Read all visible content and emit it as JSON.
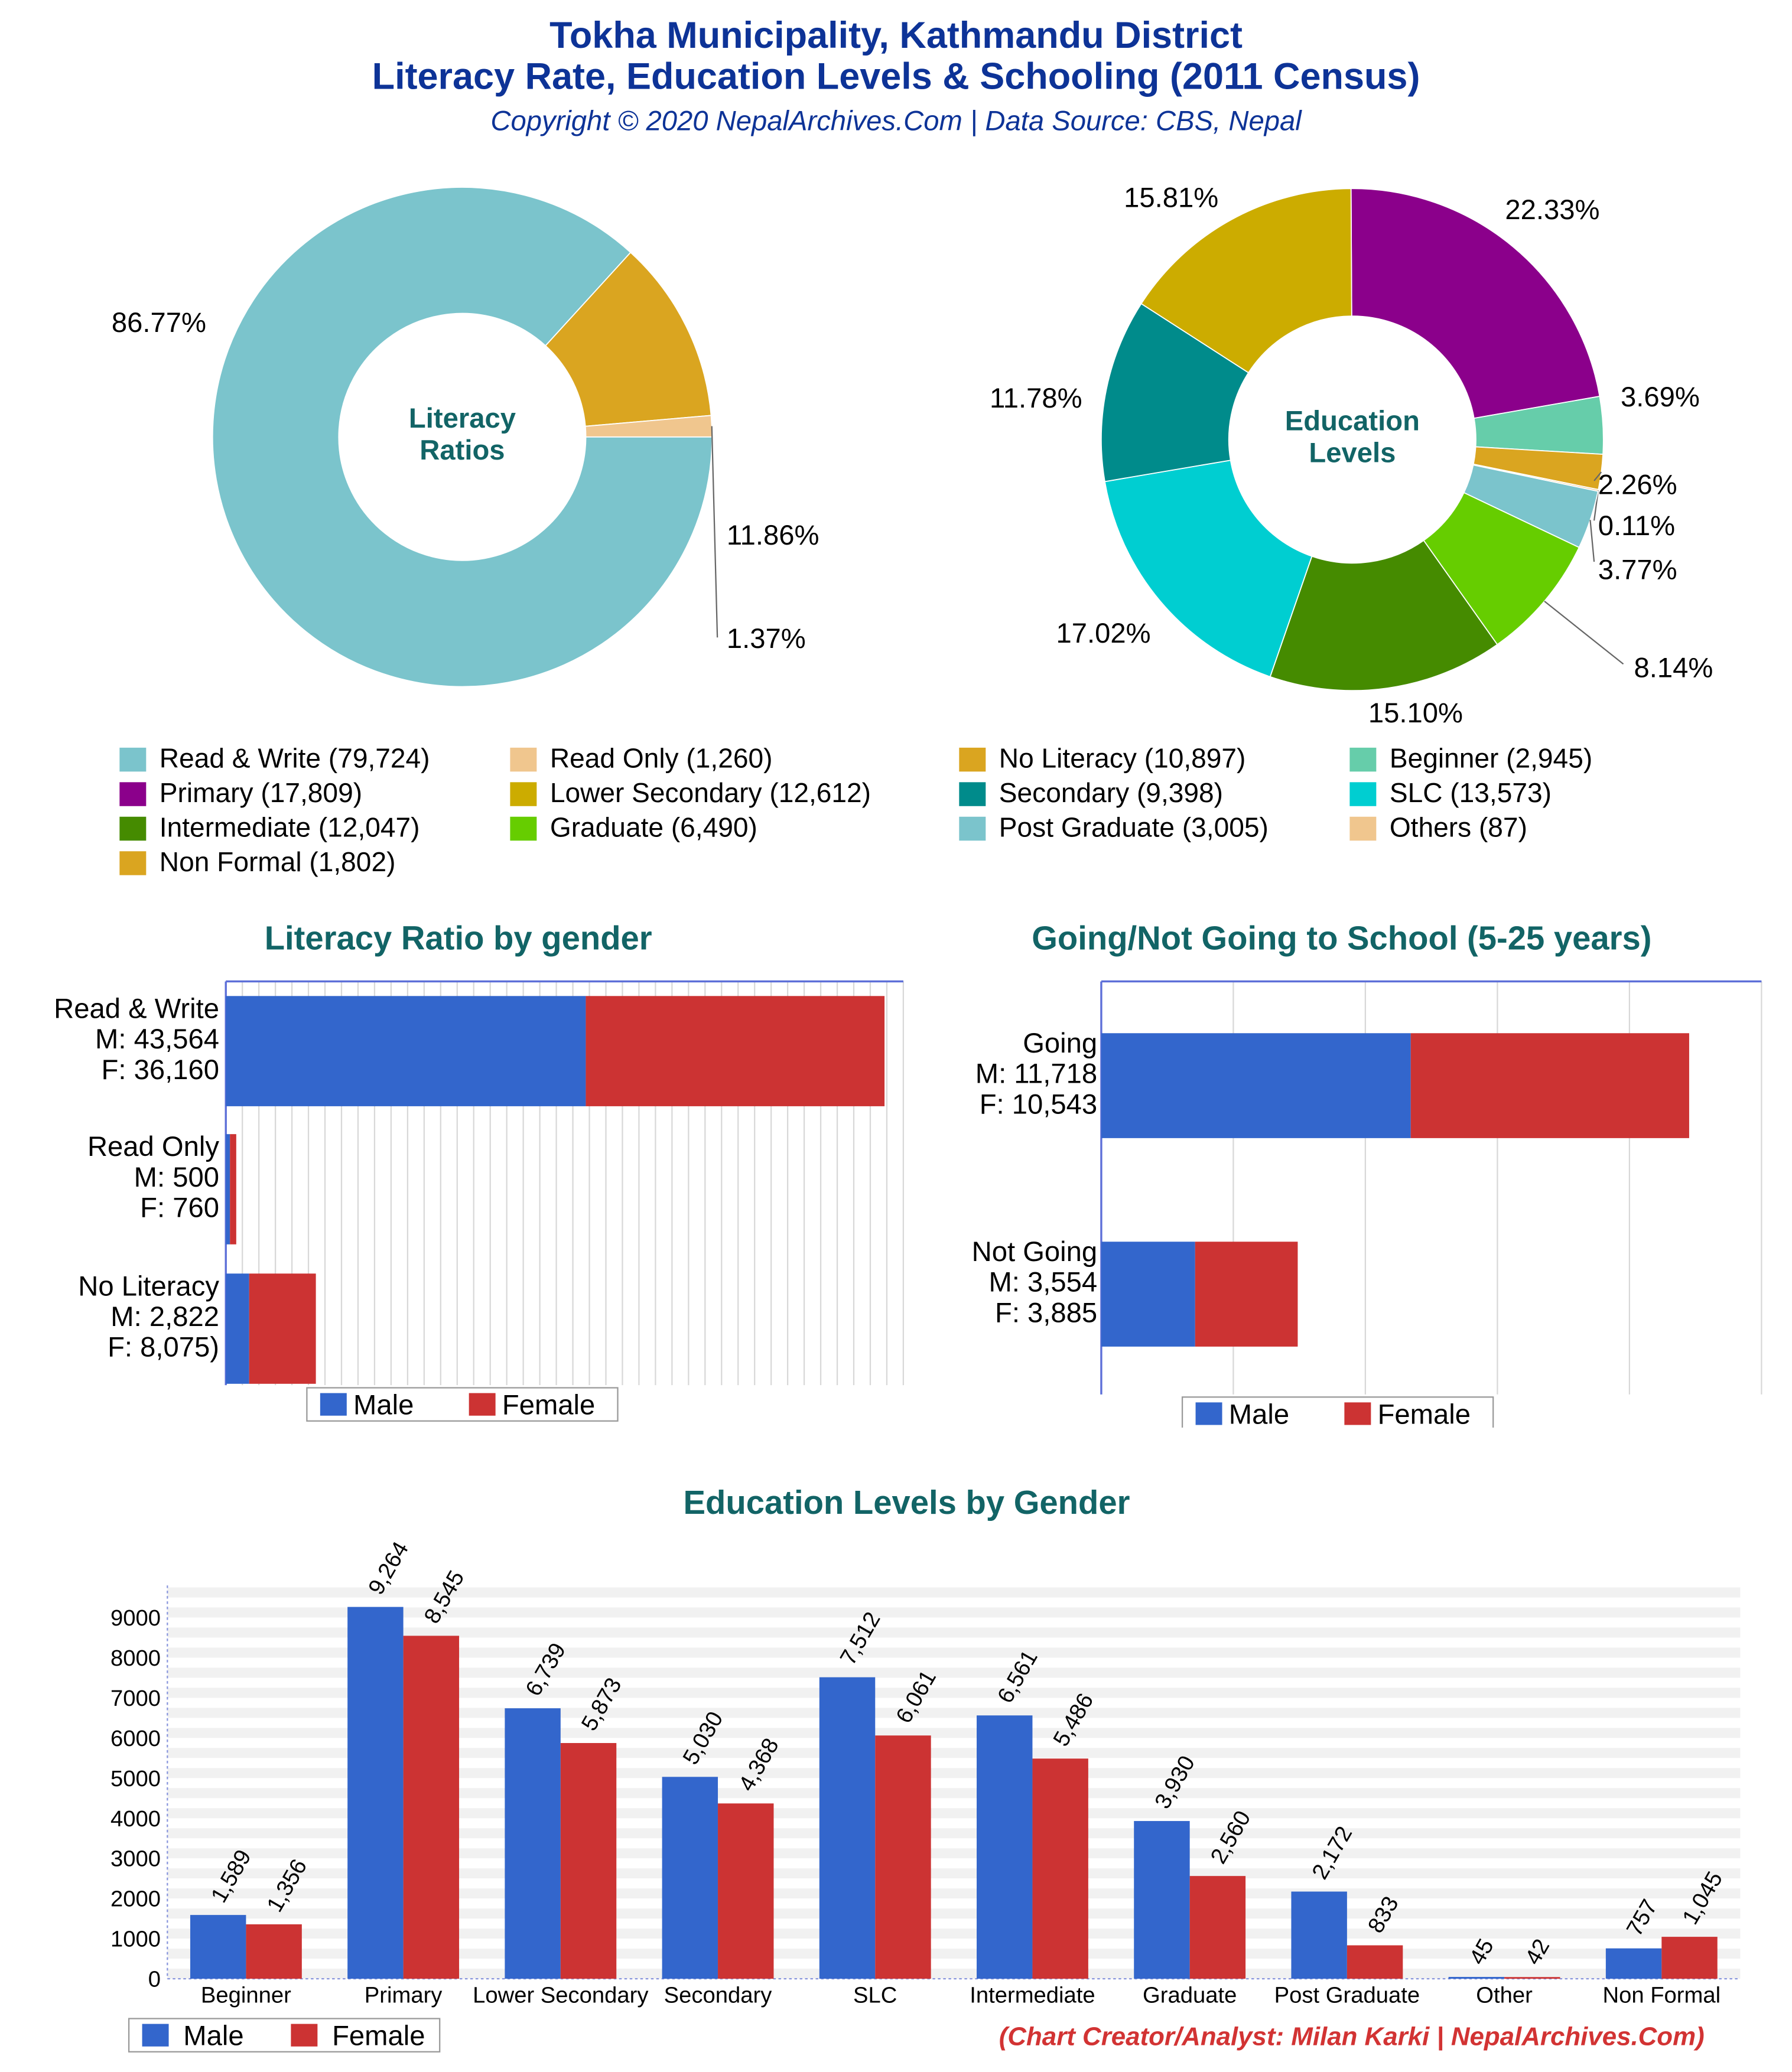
{
  "header": {
    "title_line1": "Tokha Municipality, Kathmandu District",
    "title_line2": "Literacy Rate, Education Levels & Schooling (2011 Census)",
    "subtitle": "Copyright © 2020 NepalArchives.Com | Data Source: CBS, Nepal"
  },
  "footer": {
    "credit": "(Chart Creator/Analyst: Milan Karki | NepalArchives.Com)"
  },
  "legend_items": [
    {
      "label": "Read & Write (79,724)",
      "color": "#7bc4cc"
    },
    {
      "label": "Read Only (1,260)",
      "color": "#f0c68e"
    },
    {
      "label": "No Literacy (10,897)",
      "color": "#daa520"
    },
    {
      "label": "Beginner (2,945)",
      "color": "#66cdaa"
    },
    {
      "label": "Primary (17,809)",
      "color": "#8b008b"
    },
    {
      "label": "Lower Secondary (12,612)",
      "color": "#ccac00"
    },
    {
      "label": "Secondary (9,398)",
      "color": "#008b8b"
    },
    {
      "label": "SLC (13,573)",
      "color": "#00ced1"
    },
    {
      "label": "Intermediate (12,047)",
      "color": "#458b00"
    },
    {
      "label": "Graduate (6,490)",
      "color": "#66cd00"
    },
    {
      "label": "Post Graduate (3,005)",
      "color": "#7bc4cc"
    },
    {
      "label": "Others (87)",
      "color": "#f0c68e"
    },
    {
      "label": "Non Formal (1,802)",
      "color": "#daa520"
    }
  ],
  "chart_data": [
    {
      "type": "pie",
      "center_label": [
        "Literacy",
        "Ratios"
      ],
      "slices": [
        {
          "name": "Read & Write",
          "value": 79724,
          "pct_label": "86.77%",
          "color": "#7bc4cc"
        },
        {
          "name": "No Literacy",
          "value": 10897,
          "pct_label": "11.86%",
          "color": "#daa520"
        },
        {
          "name": "Read Only",
          "value": 1260,
          "pct_label": "1.37%",
          "color": "#f0c68e"
        }
      ]
    },
    {
      "type": "pie",
      "center_label": [
        "Education",
        "Levels"
      ],
      "slices": [
        {
          "name": "Primary",
          "value": 17809,
          "pct_label": "22.33%",
          "color": "#8b008b"
        },
        {
          "name": "Beginner",
          "value": 2945,
          "pct_label": "3.69%",
          "color": "#66cdaa"
        },
        {
          "name": "Non Formal",
          "value": 1802,
          "pct_label": "2.26%",
          "color": "#daa520"
        },
        {
          "name": "Others",
          "value": 87,
          "pct_label": "0.11%",
          "color": "#f0c68e"
        },
        {
          "name": "Post Graduate",
          "value": 3005,
          "pct_label": "3.77%",
          "color": "#7bc4cc"
        },
        {
          "name": "Graduate",
          "value": 6490,
          "pct_label": "8.14%",
          "color": "#66cd00"
        },
        {
          "name": "Intermediate",
          "value": 12047,
          "pct_label": "15.10%",
          "color": "#458b00"
        },
        {
          "name": "SLC",
          "value": 13573,
          "pct_label": "17.02%",
          "color": "#00ced1"
        },
        {
          "name": "Secondary",
          "value": 9398,
          "pct_label": "11.78%",
          "color": "#008b8b"
        },
        {
          "name": "Lower Secondary",
          "value": 12612,
          "pct_label": "15.81%",
          "color": "#ccac00"
        }
      ]
    },
    {
      "type": "bar",
      "orientation": "horizontal",
      "stacked": true,
      "title": "Literacy Ratio by gender",
      "categories": [
        "Read & Write",
        "Read Only",
        "No Literacy"
      ],
      "category_labels": [
        [
          "Read & Write",
          "M: 43,564",
          "F: 36,160"
        ],
        [
          "Read Only",
          "M: 500",
          "F: 760"
        ],
        [
          "No Literacy",
          "M: 2,822",
          "F: 8,075)"
        ]
      ],
      "series": [
        {
          "name": "Male",
          "values": [
            43564,
            500,
            2822
          ],
          "color": "#3366cc"
        },
        {
          "name": "Female",
          "values": [
            36160,
            760,
            8075
          ],
          "color": "#cc3333"
        }
      ],
      "xlim": [
        0,
        82000
      ],
      "legend": "bottom"
    },
    {
      "type": "bar",
      "orientation": "horizontal",
      "stacked": true,
      "title": "Going/Not Going to School (5-25 years)",
      "categories": [
        "Going",
        "Not Going"
      ],
      "category_labels": [
        [
          "Going",
          "M: 11,718",
          "F: 10,543"
        ],
        [
          "Not Going",
          "M: 3,554",
          "F: 3,885"
        ]
      ],
      "series": [
        {
          "name": "Male",
          "values": [
            11718,
            3554
          ],
          "color": "#3366cc"
        },
        {
          "name": "Female",
          "values": [
            10543,
            3885
          ],
          "color": "#cc3333"
        }
      ],
      "xlim": [
        0,
        25000
      ],
      "legend": "bottom"
    },
    {
      "type": "bar",
      "title": "Education Levels by Gender",
      "categories": [
        "Beginner",
        "Primary",
        "Lower Secondary",
        "Secondary",
        "SLC",
        "Intermediate",
        "Graduate",
        "Post Graduate",
        "Other",
        "Non Formal"
      ],
      "series": [
        {
          "name": "Male",
          "values": [
            1589,
            9264,
            6739,
            5030,
            7512,
            6561,
            3930,
            2172,
            45,
            757
          ],
          "labels": [
            "1,589",
            "9,264",
            "6,739",
            "5,030",
            "7,512",
            "6,561",
            "3,930",
            "2,172",
            "45",
            "757"
          ],
          "color": "#3366cc"
        },
        {
          "name": "Female",
          "values": [
            1356,
            8545,
            5873,
            4368,
            6061,
            5486,
            2560,
            833,
            42,
            1045
          ],
          "labels": [
            "1,356",
            "8,545",
            "5,873",
            "4,368",
            "6,061",
            "5,486",
            "2,560",
            "833",
            "42",
            "1,045"
          ],
          "color": "#cc3333"
        }
      ],
      "yticks": [
        0,
        1000,
        2000,
        3000,
        4000,
        5000,
        6000,
        7000,
        8000,
        9000
      ],
      "ylim": [
        0,
        9800
      ],
      "legend": "bottom-left"
    }
  ]
}
